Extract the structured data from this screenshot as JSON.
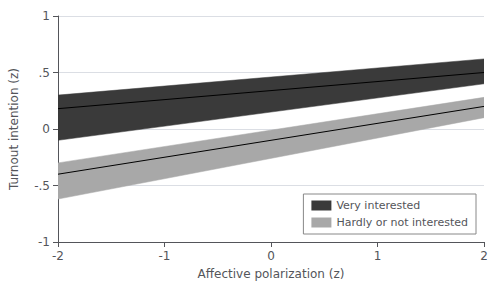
{
  "chart_data": {
    "type": "band",
    "xlabel": "Affective polarization (z)",
    "ylabel": "Turnout intention (z)",
    "xlim": [
      -2,
      2
    ],
    "ylim": [
      -1,
      1
    ],
    "xticks": [
      -2,
      -1,
      0,
      1,
      2
    ],
    "yticks": [
      -1,
      {
        "value": -0.5,
        "label": "-.5"
      },
      0,
      {
        "value": 0.5,
        "label": ".5"
      },
      1
    ],
    "grid": true,
    "legend": "lower right",
    "series": [
      {
        "name": "Very interested",
        "color": "#3a3a3a",
        "x": [
          -2,
          2
        ],
        "values": [
          0.18,
          0.5
        ],
        "ci_upper": [
          0.3,
          0.62
        ],
        "ci_lower": [
          -0.1,
          0.4
        ]
      },
      {
        "name": "Hardly or not interested",
        "color": "#a8a8a8",
        "x": [
          -2,
          2
        ],
        "values": [
          -0.4,
          0.2
        ],
        "ci_upper": [
          -0.3,
          0.28
        ],
        "ci_lower": [
          -0.62,
          0.1
        ]
      }
    ]
  }
}
